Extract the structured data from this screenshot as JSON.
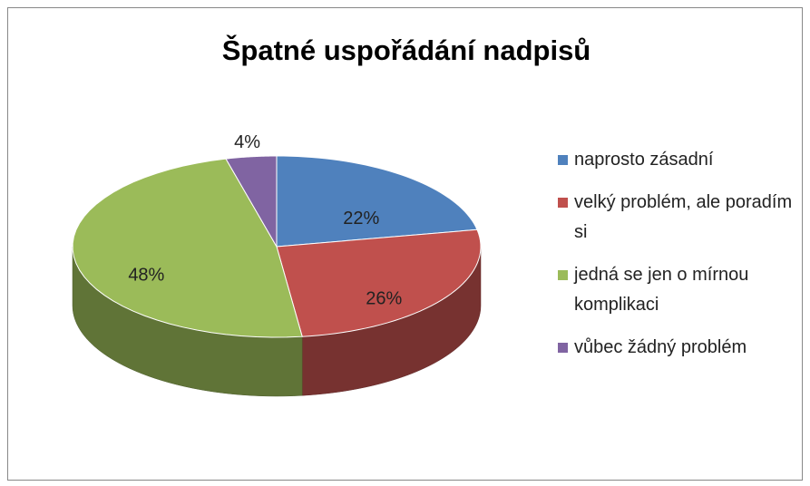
{
  "chart_data": {
    "type": "pie",
    "title": "Špatné uspořádání nadpisů",
    "categories": [
      "naprosto zásadní",
      "velký problém, ale poradím si",
      "jedná se jen o mírnou komplikaci",
      "vůbec žádný problém"
    ],
    "values": [
      22,
      26,
      48,
      4
    ],
    "value_labels": [
      "22%",
      "26%",
      "48%",
      "4%"
    ],
    "colors": [
      "#4f81bd",
      "#c0504d",
      "#9bbb59",
      "#8064a2"
    ],
    "legend": "right"
  }
}
